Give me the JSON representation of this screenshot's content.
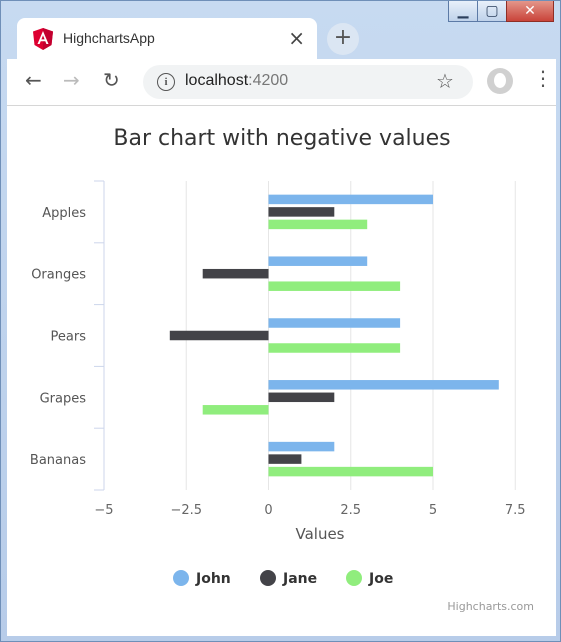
{
  "browser": {
    "tab_title": "HighchartsApp",
    "tab_close": "×",
    "new_tab": "+",
    "url_host": "localhost",
    "url_port": ":4200"
  },
  "chart_data": {
    "type": "bar",
    "orientation": "horizontal",
    "title": "Bar chart with negative values",
    "categories": [
      "Apples",
      "Oranges",
      "Pears",
      "Grapes",
      "Bananas"
    ],
    "series": [
      {
        "name": "John",
        "color": "#7cb5ec",
        "values": [
          5,
          3,
          4,
          7,
          2
        ]
      },
      {
        "name": "Jane",
        "color": "#434348",
        "values": [
          2,
          -2,
          -3,
          2,
          1
        ]
      },
      {
        "name": "Joe",
        "color": "#90ed7d",
        "values": [
          3,
          4,
          4,
          -2,
          5
        ]
      }
    ],
    "xlabel": "Values",
    "xlim": [
      -5,
      7.5
    ],
    "ticks": [
      -5,
      -2.5,
      0,
      2.5,
      5,
      7.5
    ],
    "tick_labels": [
      "−5",
      "−2.5",
      "0",
      "2.5",
      "5",
      "7.5"
    ],
    "grid": true,
    "legend_position": "bottom",
    "credits": "Highcharts.com"
  }
}
